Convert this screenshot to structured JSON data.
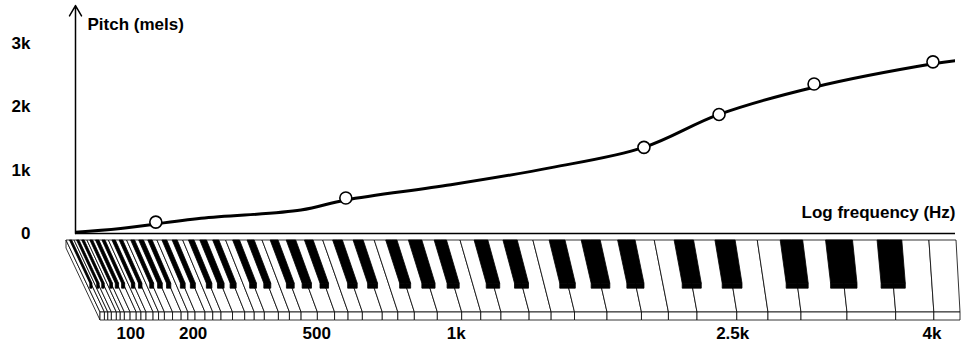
{
  "chart_data": {
    "type": "line",
    "y_label": "Pitch (mels)",
    "x_label": "Log frequency (Hz)",
    "xlim": [
      40,
      4200
    ],
    "xticks": [
      100,
      200,
      500,
      {
        "value": 1000,
        "label": "1k"
      },
      {
        "value": 2500,
        "label": "2.5k"
      },
      {
        "value": 4000,
        "label": "4k"
      }
    ],
    "ylim": [
      0,
      3600
    ],
    "yticks": [
      0,
      {
        "value": 1000,
        "label": "1k"
      },
      {
        "value": 2000,
        "label": "2k"
      },
      {
        "value": 3000,
        "label": "3k"
      }
    ],
    "grid": false,
    "series": [
      {
        "type": "line",
        "color": "#000000",
        "line_style": "solid",
        "x": [
          40,
          87,
          215,
          454,
          590,
          978,
          1439,
          1945,
          2410,
          3070,
          4008,
          4200
        ],
        "values": [
          20,
          80,
          240,
          370,
          530,
          770,
          1040,
          1360,
          1880,
          2310,
          2680,
          2730
        ]
      },
      {
        "type": "scatter",
        "color": "#000000",
        "marker": "circle",
        "x": [
          136,
          590,
          1945,
          2410,
          3070,
          4008
        ],
        "values": [
          180,
          560,
          1360,
          1880,
          2360,
          2710
        ]
      }
    ]
  }
}
